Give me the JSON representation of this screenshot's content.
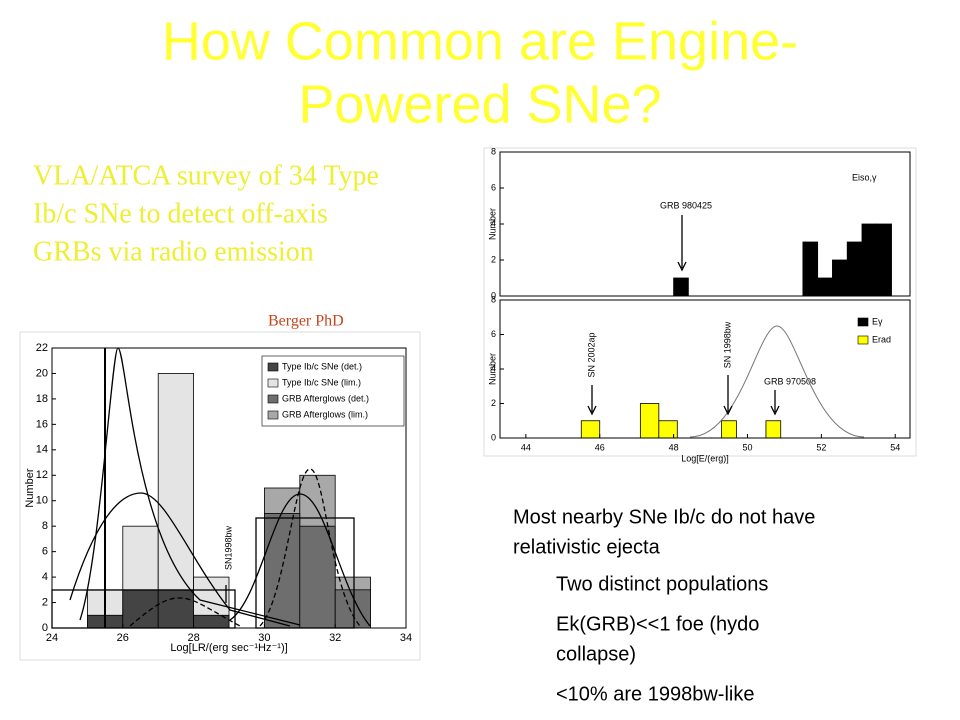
{
  "title": [
    "How Common are Engine-",
    "Powered SNe?"
  ],
  "subtitle": [
    "VLA/ATCA survey of 34 Type",
    "Ib/c SNe to detect off-axis",
    "GRBs via radio emission"
  ],
  "credit": "Berger PhD",
  "bullets": [
    {
      "lines": [
        "Most nearby SNe Ib/c do not have",
        "relativistic ejecta"
      ]
    },
    {
      "lines": [
        "Two distinct populations"
      ]
    },
    {
      "lines": [
        "Ek(GRB)<<1 foe (hydo",
        "collapse)"
      ]
    },
    {
      "lines": [
        "<10% are 1998bw-like"
      ]
    }
  ],
  "chart_data": [
    {
      "type": "histogram",
      "xlabel": "Log[LR/(erg sec⁻¹Hz⁻¹)]",
      "ylabel": "Number",
      "bins": [
        24,
        25,
        26,
        27,
        28,
        29,
        30,
        31,
        32,
        33,
        34
      ],
      "series": [
        {
          "name": "Type Ib/c SNe (det.)",
          "color": "#444444",
          "values": [
            0,
            1,
            3,
            3,
            1,
            0,
            0,
            0,
            0,
            0
          ]
        },
        {
          "name": "Type Ib/c SNe (lim.)",
          "color": "#e4e4e4",
          "values": [
            0,
            3,
            8,
            20,
            4,
            0,
            0,
            0,
            0,
            0
          ]
        },
        {
          "name": "GRB Afterglows (det.)",
          "color": "#6e6e6e",
          "values": [
            0,
            0,
            0,
            0,
            0,
            0,
            9,
            8,
            3,
            0
          ]
        },
        {
          "name": "GRB Afterglows (lim.)",
          "color": "#a8a8a8",
          "values": [
            0,
            0,
            0,
            0,
            0,
            0,
            11,
            12,
            4,
            0
          ]
        }
      ],
      "xlim": [
        24,
        34
      ],
      "xticks": [
        24,
        26,
        28,
        30,
        32,
        34
      ],
      "ylim": [
        0,
        22
      ],
      "yticks": [
        0,
        2,
        4,
        6,
        8,
        10,
        12,
        14,
        16,
        18,
        20,
        22
      ],
      "annotations": [
        "SN1998bw"
      ]
    },
    {
      "type": "histogram",
      "ylabel": "Number",
      "bins": [
        48,
        48.4,
        51.5,
        51.9,
        52.3,
        52.7,
        53.1,
        53.5,
        53.9
      ],
      "series": [
        {
          "name": "Eiso,γ",
          "color": "#000000",
          "values": [
            1,
            0,
            3,
            1,
            2,
            3,
            4,
            4
          ]
        }
      ],
      "xlim": [
        43.3,
        54.4
      ],
      "ylim": [
        0,
        8
      ],
      "yticks": [
        0,
        2,
        4,
        6,
        8
      ],
      "annotations": [
        "GRB 980425"
      ]
    },
    {
      "type": "histogram",
      "xlabel": "Log[E/(erg)]",
      "ylabel": "Number",
      "bins": [
        45.5,
        46.0,
        47.1,
        47.6,
        48.1,
        49.3,
        49.7,
        50.5,
        50.9
      ],
      "series": [
        {
          "name": "Eγ",
          "color": "#000000",
          "values": [
            0,
            0,
            0,
            0,
            0,
            0,
            0,
            0
          ]
        },
        {
          "name": "Erad",
          "color": "#ffff00",
          "values": [
            1,
            0,
            2,
            1,
            0,
            1,
            0,
            1
          ]
        }
      ],
      "xlim": [
        43.3,
        54.4
      ],
      "xticks": [
        44,
        46,
        48,
        50,
        52,
        54
      ],
      "ylim": [
        0,
        8
      ],
      "yticks": [
        0,
        2,
        4,
        6,
        8
      ],
      "annotations": [
        "SN 2002ap",
        "SN 1998bw",
        "GRB 970508"
      ]
    }
  ]
}
